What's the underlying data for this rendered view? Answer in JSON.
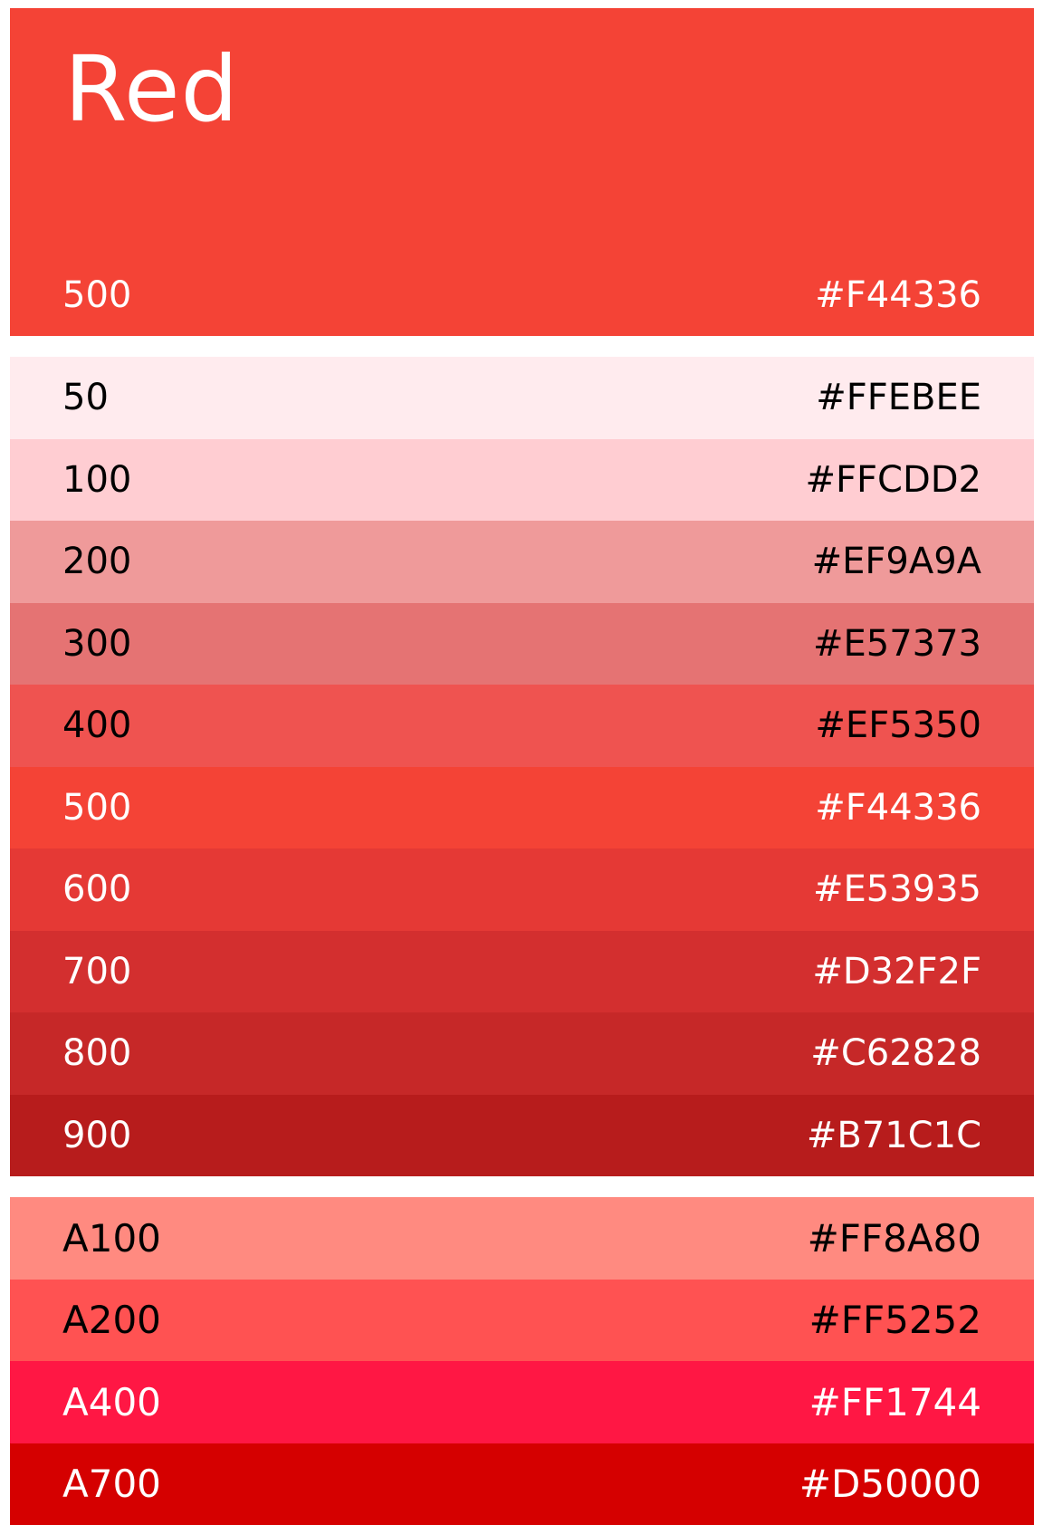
{
  "palette": {
    "name": "Red",
    "primary": {
      "shade": "500",
      "hex": "#F44336",
      "color": "#F44336",
      "text_color": "#FFFFFF"
    },
    "shades": [
      {
        "shade": "50",
        "hex": "#FFEBEE",
        "color": "#FFEBEE",
        "text_color": "#000000"
      },
      {
        "shade": "100",
        "hex": "#FFCDD2",
        "color": "#FFCDD2",
        "text_color": "#000000"
      },
      {
        "shade": "200",
        "hex": "#EF9A9A",
        "color": "#EF9A9A",
        "text_color": "#000000"
      },
      {
        "shade": "300",
        "hex": "#E57373",
        "color": "#E57373",
        "text_color": "#000000"
      },
      {
        "shade": "400",
        "hex": "#EF5350",
        "color": "#EF5350",
        "text_color": "#000000"
      },
      {
        "shade": "500",
        "hex": "#F44336",
        "color": "#F44336",
        "text_color": "#FFFFFF"
      },
      {
        "shade": "600",
        "hex": "#E53935",
        "color": "#E53935",
        "text_color": "#FFFFFF"
      },
      {
        "shade": "700",
        "hex": "#D32F2F",
        "color": "#D32F2F",
        "text_color": "#FFFFFF"
      },
      {
        "shade": "800",
        "hex": "#C62828",
        "color": "#C62828",
        "text_color": "#FFFFFF"
      },
      {
        "shade": "900",
        "hex": "#B71C1C",
        "color": "#B71C1C",
        "text_color": "#FFFFFF"
      }
    ],
    "accents": [
      {
        "shade": "A100",
        "hex": "#FF8A80",
        "color": "#FF8A80",
        "text_color": "#000000"
      },
      {
        "shade": "A200",
        "hex": "#FF5252",
        "color": "#FF5252",
        "text_color": "#000000"
      },
      {
        "shade": "A400",
        "hex": "#FF1744",
        "color": "#FF1744",
        "text_color": "#FFFFFF"
      },
      {
        "shade": "A700",
        "hex": "#D50000",
        "color": "#D50000",
        "text_color": "#FFFFFF"
      }
    ]
  }
}
